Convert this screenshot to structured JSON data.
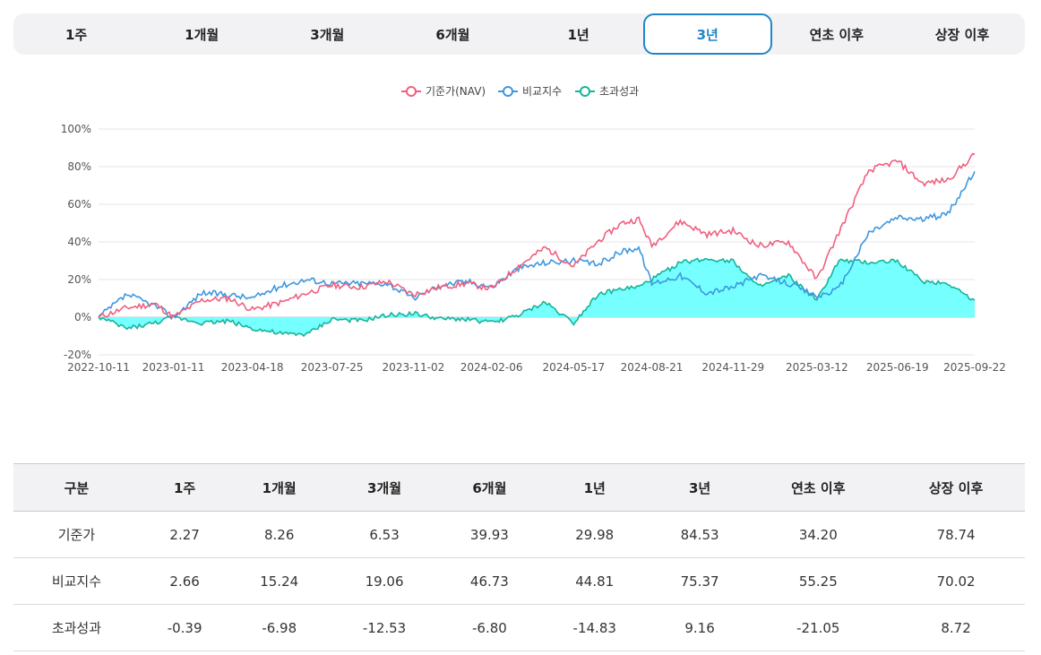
{
  "tabs": [
    "1주",
    "1개월",
    "3개월",
    "6개월",
    "1년",
    "3년",
    "연초 이후",
    "상장 이후"
  ],
  "active_tab": "3년",
  "colors": {
    "nav": "#f0607e",
    "bench": "#3d97e0",
    "excess": "#17b39a",
    "excess_fill": "#66ffff",
    "active_tab": "#1f86c9"
  },
  "chart_data": {
    "type": "line",
    "title": "",
    "legend": [
      "기준가(NAV)",
      "비교지수",
      "초과성과"
    ],
    "legend_position": "top-center",
    "x_tick_labels": [
      "2022-10-11",
      "2023-01-11",
      "2023-04-18",
      "2023-07-25",
      "2023-11-02",
      "2024-02-06",
      "2024-05-17",
      "2024-08-21",
      "2024-11-29",
      "2025-03-12",
      "2025-06-19",
      "2025-09-22"
    ],
    "y_tick_labels": [
      "100%",
      "80%",
      "60%",
      "40%",
      "20%",
      "0%",
      "-20%"
    ],
    "ylim": [
      -20,
      100
    ],
    "grid": "horizontal",
    "x": [
      "2022-10-11",
      "2022-11-15",
      "2022-12-20",
      "2023-01-11",
      "2023-02-15",
      "2023-03-20",
      "2023-04-18",
      "2023-05-25",
      "2023-06-25",
      "2023-07-25",
      "2023-08-30",
      "2023-10-01",
      "2023-11-02",
      "2023-12-05",
      "2024-01-08",
      "2024-02-06",
      "2024-03-10",
      "2024-04-12",
      "2024-05-17",
      "2024-06-15",
      "2024-07-15",
      "2024-08-05",
      "2024-08-21",
      "2024-09-25",
      "2024-10-28",
      "2024-11-29",
      "2024-12-30",
      "2025-02-05",
      "2025-03-12",
      "2025-04-08",
      "2025-05-15",
      "2025-06-19",
      "2025-07-20",
      "2025-08-20",
      "2025-09-22"
    ],
    "series": [
      {
        "name": "기준가(NAV)",
        "values": [
          0,
          5,
          7,
          0,
          9,
          10,
          4,
          8,
          13,
          17,
          16,
          19,
          12,
          16,
          18,
          15,
          27,
          37,
          27,
          40,
          50,
          52,
          38,
          51,
          44,
          46,
          38,
          40,
          20,
          45,
          78,
          83,
          71,
          73,
          86.5
        ]
      },
      {
        "name": "비교지수",
        "values": [
          0,
          12,
          6,
          0,
          13,
          12,
          10,
          17,
          20,
          18,
          18,
          18,
          10,
          17,
          19,
          16,
          26,
          29,
          30,
          28,
          35,
          37,
          18,
          22,
          13,
          16,
          22,
          18,
          11,
          15,
          45,
          53,
          52,
          55,
          77.5
        ]
      },
      {
        "name": "초과성과",
        "values": [
          0,
          -6,
          -3,
          0,
          -3,
          -2,
          -6,
          -9,
          -9,
          -1,
          -2,
          1,
          2,
          -1,
          -1,
          -3,
          1,
          8,
          -3,
          12,
          15,
          16,
          20,
          29,
          31,
          30,
          16,
          22,
          9,
          30,
          29,
          30,
          19,
          18,
          9
        ]
      }
    ]
  },
  "table": {
    "headers": [
      "구분",
      "1주",
      "1개월",
      "3개월",
      "6개월",
      "1년",
      "3년",
      "연초 이후",
      "상장 이후"
    ],
    "rows": [
      [
        "기준가",
        "2.27",
        "8.26",
        "6.53",
        "39.93",
        "29.98",
        "84.53",
        "34.20",
        "78.74"
      ],
      [
        "비교지수",
        "2.66",
        "15.24",
        "19.06",
        "46.73",
        "44.81",
        "75.37",
        "55.25",
        "70.02"
      ],
      [
        "초과성과",
        "-0.39",
        "-6.98",
        "-12.53",
        "-6.80",
        "-14.83",
        "9.16",
        "-21.05",
        "8.72"
      ]
    ]
  }
}
